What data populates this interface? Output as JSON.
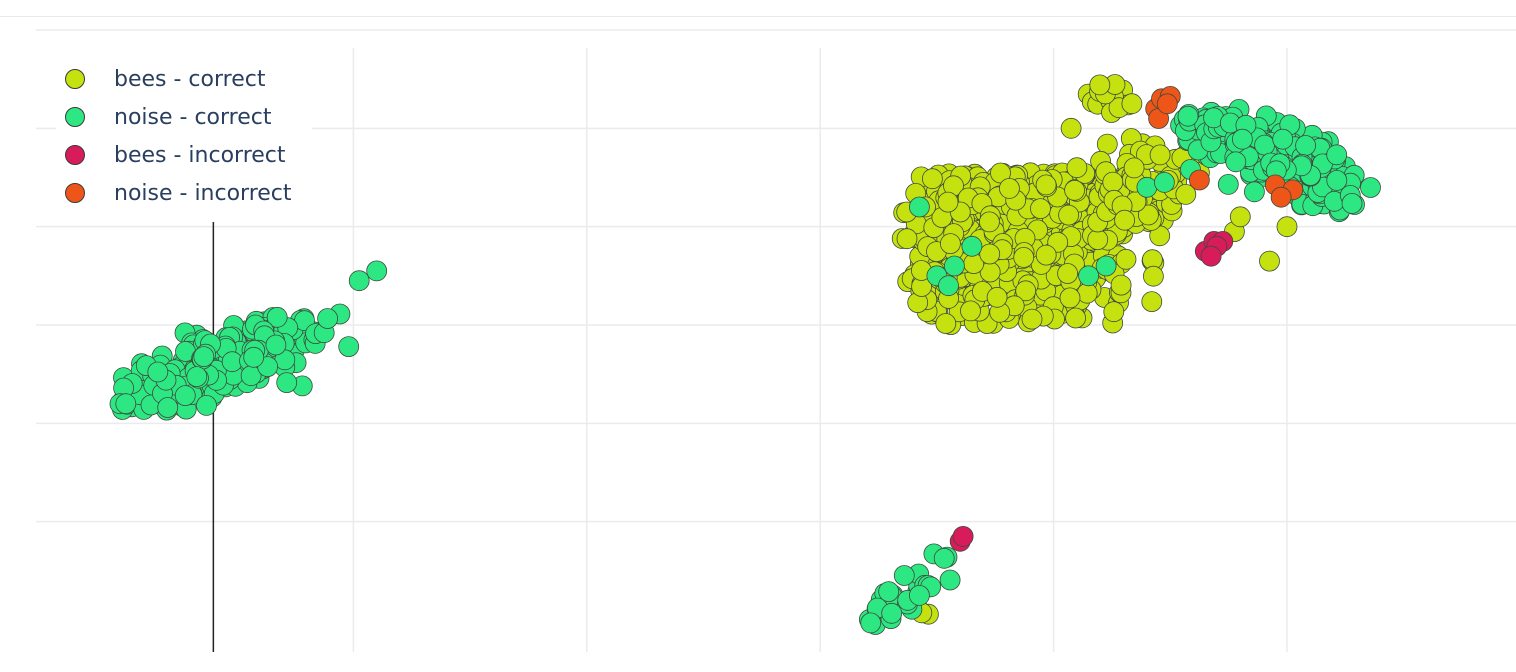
{
  "chart_data": {
    "type": "scatter",
    "title": "",
    "xlabel": "",
    "ylabel": "",
    "xlim": [
      -12,
      11
    ],
    "ylim": [
      -6,
      6
    ],
    "grid": true,
    "xtick_values": [
      -8,
      -4,
      0,
      4,
      8
    ],
    "ytick_values": [
      -4,
      -2,
      0,
      2,
      4
    ],
    "legend_position": "top-left",
    "hover_line_x": -10.4,
    "series": [
      {
        "name": "bees - correct",
        "color": "#c5e10f",
        "clusters": [
          {
            "cx": 3.3,
            "cy": 2.0,
            "sx": 1.1,
            "sy": 1.1,
            "n": 700,
            "seed": 11,
            "xmin": 1.4,
            "xmax": 6.0,
            "ymin": 0.0,
            "ymax": 3.1,
            "slant": 0.15
          },
          {
            "cx": 5.6,
            "cy": 2.9,
            "sx": 0.6,
            "sy": 0.5,
            "n": 70,
            "seed": 12,
            "xmin": 4.8,
            "xmax": 6.6,
            "ymin": 2.0,
            "ymax": 4.5,
            "slant": 0.3
          },
          {
            "cx": 5.0,
            "cy": 4.6,
            "sx": 0.25,
            "sy": 0.2,
            "n": 14,
            "seed": 13,
            "xmin": 4.5,
            "xmax": 5.6,
            "ymin": 4.2,
            "ymax": 4.9,
            "slant": 0.0
          },
          {
            "cx": 1.8,
            "cy": -5.8,
            "sx": 0.08,
            "sy": 0.06,
            "n": 3,
            "seed": 14,
            "xmin": 1.6,
            "xmax": 2.0,
            "ymin": -6.0,
            "ymax": -5.6,
            "slant": 0.0
          }
        ],
        "points": [
          [
            4.3,
            4.0
          ],
          [
            4.4,
            3.2
          ],
          [
            6.2,
            3.4
          ],
          [
            6.5,
            3.1
          ],
          [
            7.1,
            1.9
          ],
          [
            7.2,
            2.2
          ],
          [
            7.7,
            1.3
          ],
          [
            8.0,
            2.0
          ]
        ]
      },
      {
        "name": "noise - correct",
        "color": "#2de882",
        "clusters": [
          {
            "cx": -10.3,
            "cy": -0.8,
            "sx": 1.0,
            "sy": 0.35,
            "n": 260,
            "seed": 21,
            "xmin": -12.0,
            "xmax": -8.0,
            "ymin": -1.8,
            "ymax": 0.3,
            "slant": 0.45
          },
          {
            "cx": 7.7,
            "cy": 3.4,
            "sx": 0.9,
            "sy": 0.35,
            "n": 260,
            "seed": 22,
            "xmin": 6.1,
            "xmax": 9.5,
            "ymin": 2.3,
            "ymax": 4.4,
            "slant": -0.55
          },
          {
            "cx": 1.5,
            "cy": -5.5,
            "sx": 0.5,
            "sy": 0.2,
            "n": 28,
            "seed": 23,
            "xmin": 0.4,
            "xmax": 2.4,
            "ymin": -6.1,
            "ymax": -4.6,
            "slant": 0.9
          }
        ],
        "points": [
          [
            -12.0,
            -1.6
          ],
          [
            -11.9,
            -1.6
          ],
          [
            -7.9,
            0.9
          ],
          [
            -7.6,
            1.1
          ],
          [
            1.7,
            2.4
          ],
          [
            2.6,
            1.6
          ],
          [
            2.3,
            1.2
          ],
          [
            2.0,
            1.0
          ],
          [
            2.2,
            0.8
          ],
          [
            4.6,
            1.0
          ],
          [
            4.9,
            1.2
          ],
          [
            5.6,
            2.8
          ],
          [
            5.9,
            2.9
          ],
          [
            1.5,
            -5.6
          ],
          [
            1.7,
            -5.5
          ]
        ]
      },
      {
        "name": "bees - incorrect",
        "color": "#d81b5a",
        "points": [
          [
            6.6,
            1.5
          ],
          [
            6.75,
            1.7
          ],
          [
            6.9,
            1.7
          ],
          [
            6.8,
            1.6
          ],
          [
            6.7,
            1.4
          ],
          [
            2.4,
            -4.4
          ],
          [
            2.45,
            -4.3
          ]
        ]
      },
      {
        "name": "noise - incorrect",
        "color": "#ee5519",
        "points": [
          [
            5.75,
            4.4
          ],
          [
            5.85,
            4.6
          ],
          [
            6.0,
            4.65
          ],
          [
            5.8,
            4.2
          ],
          [
            6.5,
            2.95
          ],
          [
            7.8,
            2.85
          ],
          [
            8.1,
            2.75
          ],
          [
            7.9,
            2.6
          ],
          [
            5.95,
            4.5
          ]
        ]
      }
    ]
  }
}
